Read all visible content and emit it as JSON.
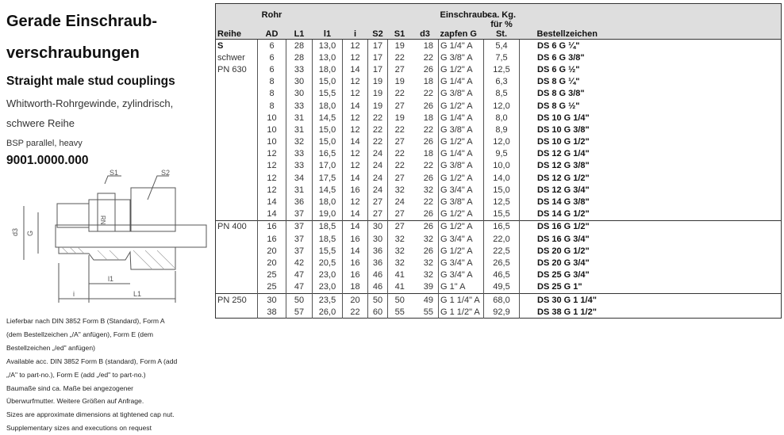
{
  "title_line1": "Gerade Einschraub-",
  "title_line2": "verschraubungen",
  "subtitle": "Straight male stud couplings",
  "desc_de1": "Whitworth-Rohrgewinde, zylindrisch,",
  "desc_de2": "schwere Reihe",
  "desc_en": "BSP parallel, heavy",
  "part_number": "9001.0000.000",
  "drawing_labels": {
    "s1": "S1",
    "s2": "S2",
    "d3": "d3",
    "g": "G",
    "l1": "l1",
    "i": "i",
    "L1": "L1",
    "rn": "RN"
  },
  "notes": [
    "Lieferbar nach DIN 3852 Form B (Standard), Form A",
    "(dem Bestellzeichen „/A\" anfügen), Form E (dem",
    "Bestellzeichen „/ed\" anfügen)",
    "Available acc. DIN 3852 Form B (standard), Form A (add",
    "„/A\" to part-no.), Form E (add „/ed\" to part-no.)",
    "Baumaße sind ca. Maße bei angezogener",
    "Überwurfmutter.  Weitere Größen auf Anfrage.",
    "Sizes are approximate dimensions at tightened cap nut.",
    "Supplementary sizes and executions on request"
  ],
  "table": {
    "header_top": {
      "ad": "Rohr",
      "g": "Einschraub-",
      "kg": "ca. Kg."
    },
    "header": [
      "Reihe",
      "AD",
      "L1",
      "l1",
      "i",
      "S2",
      "S1",
      "d3",
      "zapfen G",
      "für % St.",
      "Bestellzeichen"
    ],
    "rows": [
      [
        "S",
        "6",
        "28",
        "13,0",
        "12",
        "17",
        "19",
        "18",
        "G 1/4\" A",
        "5,4",
        "DS 6 G ¼\""
      ],
      [
        "schwer",
        "6",
        "28",
        "13,0",
        "12",
        "17",
        "22",
        "22",
        "G 3/8\" A",
        "7,5",
        "DS 6 G 3/8\""
      ],
      [
        "PN 630",
        "6",
        "33",
        "18,0",
        "14",
        "17",
        "27",
        "26",
        "G 1/2\" A",
        "12,5",
        "DS 6 G ½\""
      ],
      [
        "",
        "8",
        "30",
        "15,0",
        "12",
        "19",
        "19",
        "18",
        "G 1/4\" A",
        "6,3",
        "DS 8 G ¼\""
      ],
      [
        "",
        "8",
        "30",
        "15,5",
        "12",
        "19",
        "22",
        "22",
        "G 3/8\" A",
        "8,5",
        "DS 8 G 3/8\""
      ],
      [
        "",
        "8",
        "33",
        "18,0",
        "14",
        "19",
        "27",
        "26",
        "G 1/2\" A",
        "12,0",
        "DS 8 G ½\""
      ],
      [
        "",
        "10",
        "31",
        "14,5",
        "12",
        "22",
        "19",
        "18",
        "G 1/4\" A",
        "8,0",
        "DS 10 G 1/4\""
      ],
      [
        "",
        "10",
        "31",
        "15,0",
        "12",
        "22",
        "22",
        "22",
        "G 3/8\" A",
        "8,9",
        "DS 10 G 3/8\""
      ],
      [
        "",
        "10",
        "32",
        "15,0",
        "14",
        "22",
        "27",
        "26",
        "G 1/2\" A",
        "12,0",
        "DS 10 G 1/2\""
      ],
      [
        "",
        "12",
        "33",
        "16,5",
        "12",
        "24",
        "22",
        "18",
        "G 1/4\" A",
        "9,5",
        "DS 12 G 1/4\""
      ],
      [
        "",
        "12",
        "33",
        "17,0",
        "12",
        "24",
        "22",
        "22",
        "G 3/8\" A",
        "10,0",
        "DS 12 G 3/8\""
      ],
      [
        "",
        "12",
        "34",
        "17,5",
        "14",
        "24",
        "27",
        "26",
        "G 1/2\" A",
        "14,0",
        "DS 12 G 1/2\""
      ],
      [
        "",
        "12",
        "31",
        "14,5",
        "16",
        "24",
        "32",
        "32",
        "G 3/4\" A",
        "15,0",
        "DS 12 G 3/4\""
      ],
      [
        "",
        "14",
        "36",
        "18,0",
        "12",
        "27",
        "24",
        "22",
        "G 3/8\" A",
        "12,5",
        "DS 14 G 3/8\""
      ],
      [
        "",
        "14",
        "37",
        "19,0",
        "14",
        "27",
        "27",
        "26",
        "G 1/2\" A",
        "15,5",
        "DS 14 G 1/2\""
      ],
      [
        "PN 400",
        "16",
        "37",
        "18,5",
        "14",
        "30",
        "27",
        "26",
        "G 1/2\" A",
        "16,5",
        "DS 16 G 1/2\""
      ],
      [
        "",
        "16",
        "37",
        "18,5",
        "16",
        "30",
        "32",
        "32",
        "G 3/4\" A",
        "22,0",
        "DS 16 G 3/4\""
      ],
      [
        "",
        "20",
        "37",
        "15,5",
        "14",
        "36",
        "32",
        "26",
        "G 1/2\" A",
        "22,5",
        "DS 20 G 1/2\""
      ],
      [
        "",
        "20",
        "42",
        "20,5",
        "16",
        "36",
        "32",
        "32",
        "G 3/4\" A",
        "26,5",
        "DS 20 G 3/4\""
      ],
      [
        "",
        "25",
        "47",
        "23,0",
        "16",
        "46",
        "41",
        "32",
        "G 3/4\" A",
        "46,5",
        "DS 25 G 3/4\""
      ],
      [
        "",
        "25",
        "47",
        "23,0",
        "18",
        "46",
        "41",
        "39",
        "G 1\" A",
        "49,5",
        "DS 25 G 1\""
      ],
      [
        "PN 250",
        "30",
        "50",
        "23,5",
        "20",
        "50",
        "50",
        "49",
        "G 1 1/4\" A",
        "68,0",
        "DS 30 G 1 1/4\""
      ],
      [
        "",
        "38",
        "57",
        "26,0",
        "22",
        "60",
        "55",
        "55",
        "G 1 1/2\" A",
        "92,9",
        "DS 38 G 1 1/2\""
      ]
    ],
    "group_starts": [
      15,
      21
    ]
  }
}
